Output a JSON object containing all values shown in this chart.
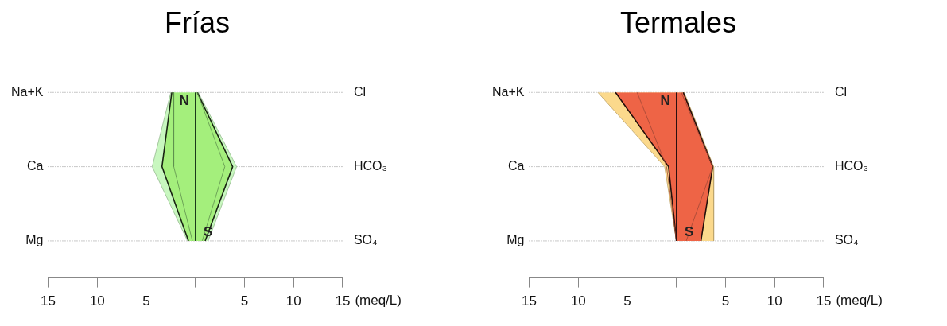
{
  "chart_data": [
    {
      "type": "area",
      "orientation": "horizontal",
      "title": "Frías",
      "xlabel": "(meq/L)",
      "categories": [
        "Na+K",
        "Ca",
        "Mg"
      ],
      "y2_categories": [
        "Cl",
        "HCO₃",
        "SO₄"
      ],
      "xlim": [
        -15,
        15
      ],
      "xticks": [
        {
          "value": -15,
          "label": "15"
        },
        {
          "value": -10,
          "label": "10"
        },
        {
          "value": -5,
          "label": "5"
        },
        {
          "value": 0,
          "label": null
        },
        5,
        10,
        15
      ],
      "legend": false,
      "ref_lines": [
        {
          "axis": "x",
          "value": 0,
          "color": "#1a3a1a"
        },
        {
          "axis": "y",
          "value": "Na+K",
          "color": "#777777",
          "line_style": "dotted"
        },
        {
          "axis": "y",
          "value": "Ca",
          "color": "#777777",
          "line_style": "dotted"
        },
        {
          "axis": "y",
          "value": "Mg",
          "color": "#777777",
          "line_style": "dotted"
        }
      ],
      "annotations": [
        "N",
        "S"
      ],
      "series": [
        {
          "color": "#c8f7bf",
          "values": [
            -2.5,
            -4.4,
            -0.8
          ]
        },
        {
          "color": "#c8f7bf",
          "values": [
            0.3,
            4.2,
            1.3
          ]
        },
        {
          "color": "#a4ef7c",
          "values": [
            -2.4,
            -3.4,
            -0.7
          ]
        },
        {
          "color": "#a4ef7c",
          "values": [
            0.2,
            3.8,
            1.0
          ]
        },
        {
          "type": "line",
          "color": "#5e8f4e",
          "values": [
            -2.2,
            -2.2,
            -0.3
          ]
        },
        {
          "type": "line",
          "color": "#5e8f4e",
          "values": [
            0.2,
            3.0,
            0.7
          ]
        }
      ]
    },
    {
      "type": "area",
      "orientation": "horizontal",
      "title": "Termales",
      "xlabel": "(meq/L)",
      "categories": [
        "Na+K",
        "Ca",
        "Mg"
      ],
      "y2_categories": [
        "Cl",
        "HCO₃",
        "SO₄"
      ],
      "xlim": [
        -15,
        15
      ],
      "xticks": [
        {
          "value": -15,
          "label": "15"
        },
        {
          "value": -10,
          "label": "10"
        },
        {
          "value": -5,
          "label": "5"
        },
        {
          "value": 0,
          "label": null
        },
        5,
        10,
        15
      ],
      "legend": false,
      "ref_lines": [
        {
          "axis": "x",
          "value": 0,
          "color": "#2a1010"
        },
        {
          "axis": "y",
          "value": "Na+K",
          "color": "#777777",
          "line_style": "dotted"
        },
        {
          "axis": "y",
          "value": "Ca",
          "color": "#777777",
          "line_style": "dotted"
        },
        {
          "axis": "y",
          "value": "Mg",
          "color": "#777777",
          "line_style": "dotted"
        }
      ],
      "annotations": [
        "N",
        "S"
      ],
      "series": [
        {
          "color": "#fbd98c",
          "values": [
            -8.0,
            -1.2,
            0
          ]
        },
        {
          "color": "#fbd98c",
          "values": [
            0.8,
            3.8,
            3.8
          ]
        },
        {
          "color": "#ee6446",
          "values": [
            -6.2,
            -0.8,
            0
          ]
        },
        {
          "color": "#ee6446",
          "values": [
            0.7,
            3.7,
            2.5
          ]
        },
        {
          "type": "line",
          "color": "#a04836",
          "values": [
            -4.0,
            -1.0,
            0
          ]
        },
        {
          "type": "line",
          "color": "#a04836",
          "values": [
            0.5,
            3.7,
            1.0
          ]
        }
      ]
    }
  ]
}
